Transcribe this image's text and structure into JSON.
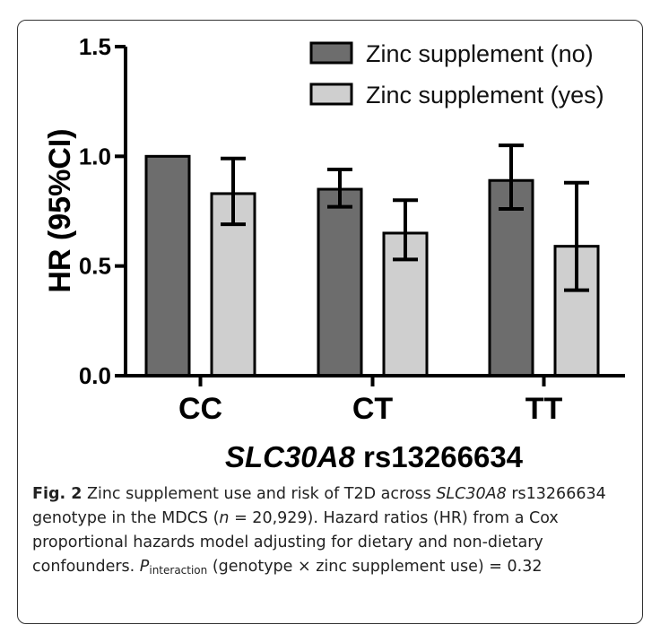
{
  "chart_data": {
    "type": "bar",
    "categories": [
      "CC",
      "CT",
      "TT"
    ],
    "series": [
      {
        "name": "Zinc supplement (no)",
        "color": "#6d6d6d",
        "values": [
          1.0,
          0.85,
          0.89
        ],
        "err_low": [
          1.0,
          0.77,
          0.76
        ],
        "err_high": [
          1.0,
          0.94,
          1.05
        ]
      },
      {
        "name": "Zinc supplement (yes)",
        "color": "#cfcfcf",
        "values": [
          0.83,
          0.65,
          0.59
        ],
        "err_low": [
          0.69,
          0.53,
          0.39
        ],
        "err_high": [
          0.99,
          0.8,
          0.88
        ]
      }
    ],
    "ylabel": "HR (95%CI)",
    "xlabel_italic": "SLC30A8",
    "xlabel_rest": "rs13266634",
    "ylim": [
      0,
      1.5
    ],
    "yticks": [
      "0.0",
      "0.5",
      "1.0",
      "1.5"
    ],
    "grid": false,
    "legend_position": "top-right"
  },
  "caption": {
    "fig_label": "Fig. 2",
    "part1": " Zinc supplement use and risk of T2D across ",
    "gene": "SLC30A8",
    "part2": " rs13266634 genotype in the MDCS (",
    "n_symbol": "n",
    "part3": " = 20,929). Hazard ratios (HR) from a Cox proportional hazards model adjusting for dietary and non-dietary confounders. ",
    "p_symbol": "P",
    "p_sub": "interaction",
    "part4": " (genotype × zinc supplement use) = 0.32"
  }
}
